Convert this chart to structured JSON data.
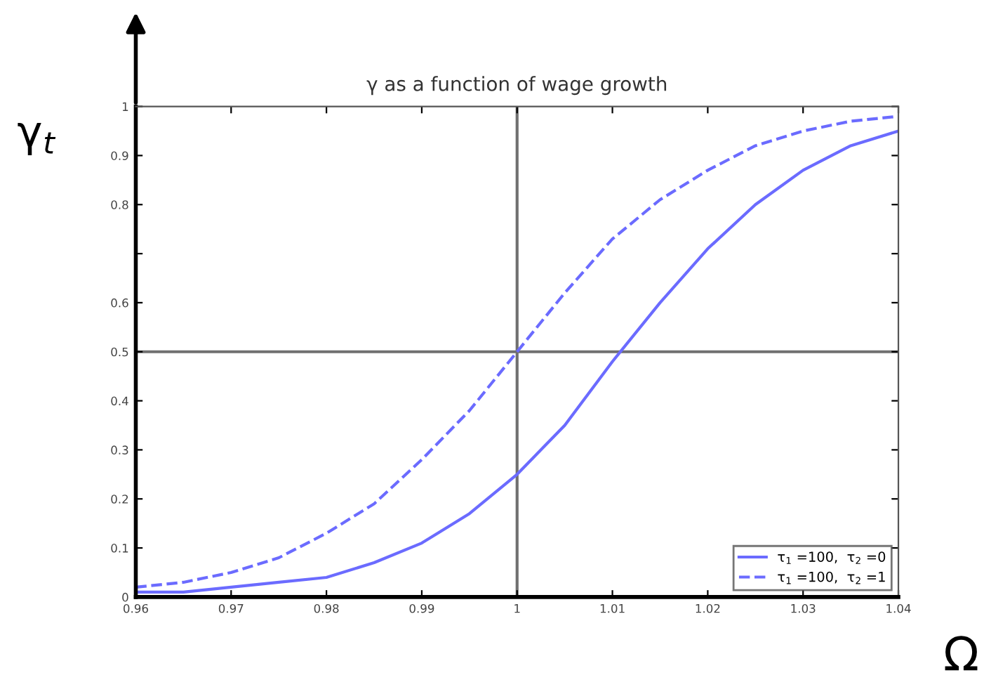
{
  "chart_data": {
    "type": "line",
    "title": "γ as a function of wage growth",
    "xlabel": "Ω",
    "ylabel": "γ$_{t}$",
    "x": [
      0.96,
      0.965,
      0.97,
      0.975,
      0.98,
      0.985,
      0.99,
      0.995,
      1.0,
      1.005,
      1.01,
      1.015,
      1.02,
      1.025,
      1.03,
      1.035,
      1.04
    ],
    "series": [
      {
        "name": "τ$_{1}$ =100,  τ$_{2}$ =0",
        "color": "#6b6bff",
        "line_style": "solid",
        "values": [
          0.01,
          0.01,
          0.02,
          0.03,
          0.04,
          0.07,
          0.11,
          0.17,
          0.25,
          0.35,
          0.48,
          0.6,
          0.71,
          0.8,
          0.87,
          0.92,
          0.95
        ]
      },
      {
        "name": "τ$_{1}$ =100,  τ$_{2}$ =1",
        "color": "#6b6bff",
        "line_style": "dashed",
        "values": [
          0.02,
          0.03,
          0.05,
          0.08,
          0.13,
          0.19,
          0.28,
          0.38,
          0.5,
          0.62,
          0.73,
          0.81,
          0.87,
          0.92,
          0.95,
          0.97,
          0.98
        ]
      }
    ],
    "xlim": [
      0.96,
      1.04
    ],
    "ylim": [
      0,
      1
    ],
    "xticks": [
      0.96,
      0.97,
      0.98,
      0.99,
      1,
      1.01,
      1.02,
      1.03,
      1.04
    ],
    "yticks": [
      0,
      0.1,
      0.2,
      0.3,
      0.4,
      0.5,
      0.6,
      {
        "value": 0.7,
        "label": null
      },
      0.8,
      0.9,
      1
    ],
    "ref_lines": [
      {
        "axis": "x",
        "value": 1,
        "color": "#707070"
      },
      {
        "axis": "y",
        "value": 0.5,
        "color": "#707070"
      }
    ],
    "grid": false,
    "legend": "bottom right"
  }
}
